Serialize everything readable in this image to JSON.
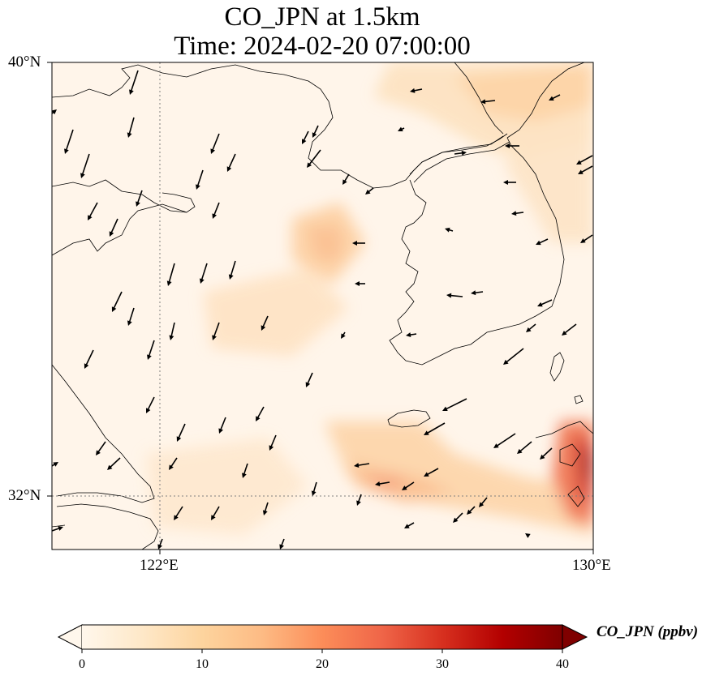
{
  "title": {
    "line1": "CO_JPN at 1.5km",
    "line2": "Time: 2024-02-20 07:00:00"
  },
  "map": {
    "lon_range": [
      119,
      130
    ],
    "lat_range": [
      31,
      40
    ],
    "lat_ticks": [
      {
        "label": "40°N"
      },
      {
        "label": "32°N"
      }
    ],
    "lon_ticks": [
      {
        "label": "122°E"
      },
      {
        "label": "130°E"
      }
    ],
    "gridlines": [
      {
        "lon": 122
      },
      {
        "lat": 32
      }
    ],
    "features": [
      "coastline",
      "wind-vectors",
      "CO concentration field"
    ]
  },
  "colorbar": {
    "label": "CO_JPN (ppbv)",
    "ticks": [
      "0",
      "10",
      "20",
      "30",
      "40"
    ],
    "range": [
      0,
      40
    ],
    "colormap": "OrRd",
    "colors": [
      "#fff7ec",
      "#fee8c8",
      "#fdd49e",
      "#fdbb84",
      "#fc8d59",
      "#ef6548",
      "#d7301f",
      "#b30000",
      "#7f0000"
    ]
  }
}
